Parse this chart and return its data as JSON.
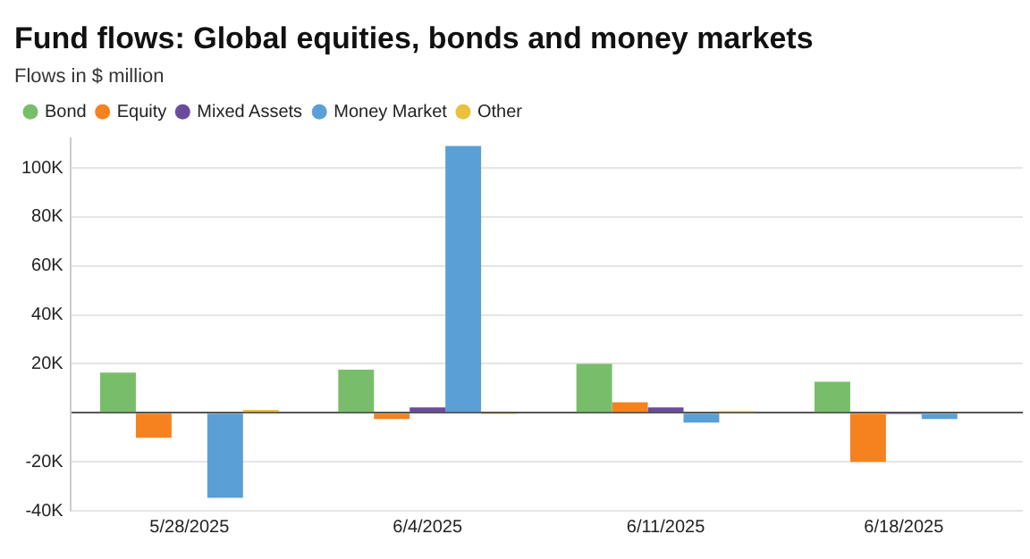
{
  "chart_data": {
    "type": "bar",
    "title": "Fund flows: Global equities, bonds and money markets",
    "subtitle": "Flows in $ million",
    "categories": [
      "5/28/2025",
      "6/4/2025",
      "6/11/2025",
      "6/18/2025"
    ],
    "series": [
      {
        "name": "Bond",
        "color": "#78be6a",
        "values": [
          16400,
          17600,
          20000,
          12700
        ]
      },
      {
        "name": "Equity",
        "color": "#f5821f",
        "values": [
          -10200,
          -2500,
          4300,
          -20000
        ]
      },
      {
        "name": "Mixed Assets",
        "color": "#6a4c9c",
        "values": [
          0,
          2200,
          2200,
          -500
        ]
      },
      {
        "name": "Money Market",
        "color": "#5a9fd6",
        "values": [
          -34700,
          109000,
          -4000,
          -2500
        ]
      },
      {
        "name": "Other",
        "color": "#e8c23a",
        "values": [
          1200,
          -500,
          700,
          null
        ]
      }
    ],
    "ylim": [
      -40000,
      112000
    ],
    "yticks": [
      {
        "value": -40000,
        "label": "-40K"
      },
      {
        "value": -20000,
        "label": "-20K"
      },
      {
        "value": 0,
        "label": null
      },
      {
        "value": 20000,
        "label": "20K"
      },
      {
        "value": 40000,
        "label": "40K"
      },
      {
        "value": 60000,
        "label": "60K"
      },
      {
        "value": 80000,
        "label": "80K"
      },
      {
        "value": 100000,
        "label": "100K"
      }
    ],
    "grid": "y",
    "legend": "top left"
  }
}
